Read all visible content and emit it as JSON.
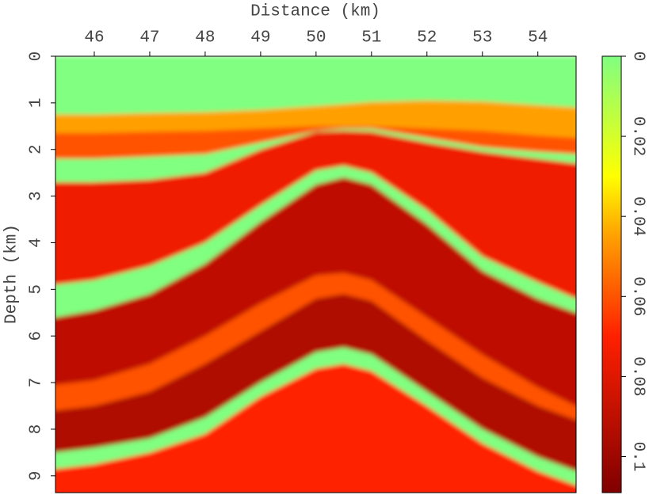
{
  "chart_data": {
    "type": "heatmap",
    "xlabel": "Distance (km)",
    "ylabel": "Depth (km)",
    "xlim": [
      45.3,
      54.69
    ],
    "ylim": [
      0,
      9.36
    ],
    "xticks": [
      46,
      47,
      48,
      49,
      50,
      51,
      52,
      53,
      54
    ],
    "yticks": [
      0,
      1,
      2,
      3,
      4,
      5,
      6,
      7,
      8,
      9
    ],
    "clim": [
      0,
      0.109
    ],
    "cticks": [
      0,
      0.02,
      0.04,
      0.06,
      0.08,
      0.1
    ],
    "colors": [
      [
        0,
        "#80ff80"
      ],
      [
        0.03,
        "#ffff00"
      ],
      [
        0.045,
        "#ffa000"
      ],
      [
        0.07,
        "#ff2000"
      ],
      [
        0.109,
        "#800000"
      ]
    ],
    "x": [
      45.3,
      46,
      47,
      48,
      49,
      50,
      50.5,
      51,
      52,
      53,
      54,
      54.69
    ],
    "layers": [
      {
        "value": 0,
        "top": [
          0,
          0,
          0,
          0,
          0,
          0,
          0,
          0,
          0,
          0,
          0,
          0
        ]
      },
      {
        "value": 0.045,
        "top": [
          1.25,
          1.25,
          1.22,
          1.2,
          1.15,
          1.07,
          1.03,
          0.98,
          0.95,
          0.97,
          1.05,
          1.1
        ]
      },
      {
        "value": 0.06,
        "top": [
          1.65,
          1.65,
          1.62,
          1.6,
          1.55,
          1.5,
          1.5,
          1.5,
          1.55,
          1.6,
          1.7,
          1.75
        ]
      },
      {
        "value": 0,
        "top": [
          2.2,
          2.2,
          2.15,
          2.1,
          1.85,
          1.6,
          1.55,
          1.55,
          1.75,
          1.95,
          2.05,
          2.1
        ]
      },
      {
        "value": 0.075,
        "top": [
          2.7,
          2.7,
          2.65,
          2.5,
          2.0,
          1.62,
          1.6,
          1.62,
          1.85,
          2.05,
          2.2,
          2.3
        ]
      },
      {
        "value": 0,
        "top": [
          4.9,
          4.8,
          4.5,
          4.0,
          3.2,
          2.45,
          2.35,
          2.5,
          3.3,
          4.3,
          4.85,
          5.2
        ]
      },
      {
        "value": 0.09,
        "top": [
          5.6,
          5.45,
          5.1,
          4.45,
          3.55,
          2.75,
          2.6,
          2.75,
          3.6,
          4.6,
          5.2,
          5.5
        ]
      },
      {
        "value": 0.06,
        "top": [
          7.05,
          6.95,
          6.6,
          6.0,
          5.3,
          4.7,
          4.65,
          4.8,
          5.6,
          6.4,
          7.1,
          7.5
        ]
      },
      {
        "value": 0.095,
        "top": [
          7.6,
          7.5,
          7.2,
          6.6,
          5.9,
          5.2,
          5.1,
          5.25,
          6.1,
          6.9,
          7.5,
          7.8
        ]
      },
      {
        "value": 0,
        "top": [
          8.5,
          8.4,
          8.2,
          7.75,
          7.0,
          6.35,
          6.25,
          6.4,
          7.2,
          8.0,
          8.6,
          8.9
        ]
      },
      {
        "value": 0.07,
        "top": [
          8.85,
          8.75,
          8.5,
          8.1,
          7.3,
          6.7,
          6.6,
          6.75,
          7.5,
          8.3,
          8.9,
          9.2
        ]
      }
    ]
  }
}
